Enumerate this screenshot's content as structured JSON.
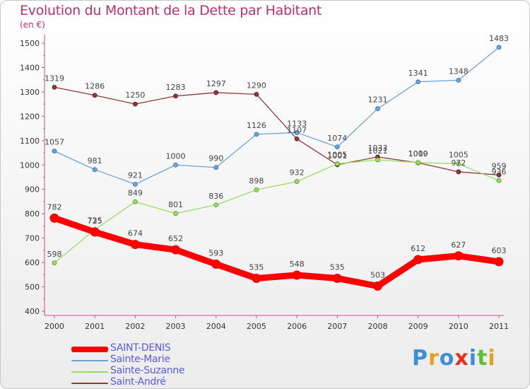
{
  "header": {
    "title": "Evolution du Montant de la Dette par Habitant",
    "subtitle": "(en €)"
  },
  "chart_data": {
    "type": "line",
    "title": "Evolution du Montant de la Dette par Habitant",
    "ylabel": "(en €)",
    "x": [
      "2000",
      "2001",
      "2002",
      "2003",
      "2004",
      "2005",
      "2006",
      "2007",
      "2008",
      "2009",
      "2010",
      "2011"
    ],
    "ylim": [
      400,
      1500
    ],
    "yticks": [
      400,
      500,
      600,
      700,
      800,
      900,
      1000,
      1100,
      1200,
      1300,
      1400,
      1500
    ],
    "grid": false,
    "legend": "bottom-left",
    "series": [
      {
        "name": "SAINT-DENIS",
        "color": "#ff0000",
        "values": [
          782,
          725,
          674,
          652,
          593,
          535,
          548,
          535,
          503,
          612,
          627,
          603
        ]
      },
      {
        "name": "Sainte-Marie",
        "color": "#6fa3d6",
        "values": [
          1057,
          981,
          921,
          1000,
          990,
          1126,
          1133,
          1074,
          1231,
          1341,
          1348,
          1483
        ]
      },
      {
        "name": "Sainte-Suzanne",
        "color": "#99dd66",
        "values": [
          598,
          735,
          849,
          801,
          836,
          898,
          932,
          1005,
          1021,
          1010,
          1005,
          936
        ]
      },
      {
        "name": "Saint-André",
        "color": "#8b3a3a",
        "values": [
          1319,
          1286,
          1250,
          1283,
          1297,
          1290,
          1107,
          1001,
          1033,
          1009,
          972,
          959
        ]
      }
    ]
  },
  "branding": {
    "letters": [
      "P",
      "r",
      "o",
      "x",
      "i",
      "t",
      "i"
    ],
    "colors": [
      "#3b8fd8",
      "#e8a020",
      "#3b8fd8",
      "#e83020",
      "#3b8fd8",
      "#60c030",
      "#e8a020"
    ]
  }
}
